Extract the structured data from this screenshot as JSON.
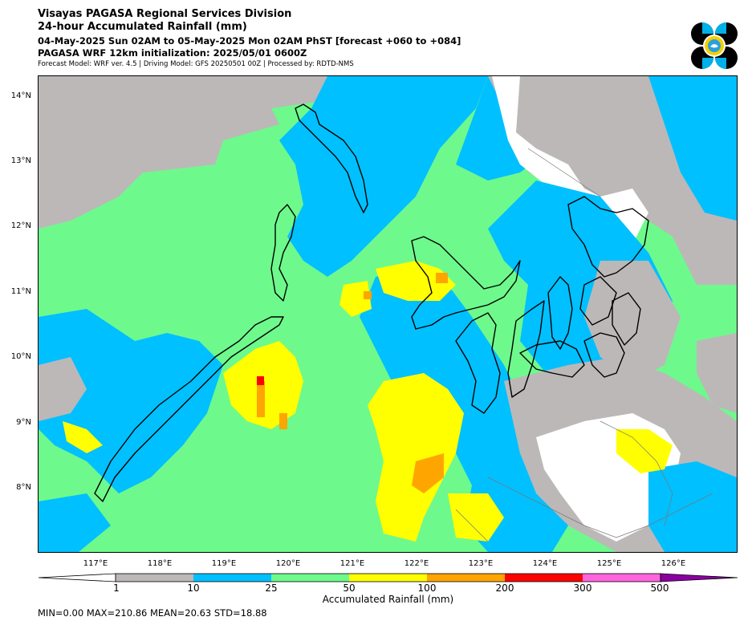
{
  "header": {
    "title": "Visayas PAGASA Regional Services Division",
    "subtitle": "24-hour Accumulated Rainfall (mm)",
    "period": "04-May-2025 Sun 02AM to 05-May-2025 Mon 02AM PhST [forecast +060 to +084]",
    "init": "PAGASA WRF 12km initialization: 2025/05/01 0600Z",
    "model_info": "Forecast Model: WRF ver. 4.5 | Driving Model: GFS 20250501 00Z | Processed by: RDTD-NMS"
  },
  "logo": {
    "icon": "pagasa-logo-icon"
  },
  "map": {
    "lat_range": [
      7.05,
      14.3
    ],
    "lon_range": [
      116.35,
      127.2
    ],
    "lat_labels": [
      "14°N",
      "13°N",
      "12°N",
      "11°N",
      "10°N",
      "9°N",
      "8°N"
    ],
    "lon_labels": [
      "117°E",
      "118°E",
      "119°E",
      "120°E",
      "121°E",
      "122°E",
      "123°E",
      "124°E",
      "125°E",
      "126°E"
    ]
  },
  "colorbar": {
    "title": "Accumulated Rainfall (mm)",
    "ticks": [
      "1",
      "10",
      "25",
      "50",
      "100",
      "200",
      "300",
      "500"
    ],
    "colors": {
      "under": "#ffffff",
      "1-10": "#bcb8b8",
      "10-25": "#00c0ff",
      "25-50": "#6ef98c",
      "50-100": "#ffff00",
      "100-200": "#ffa500",
      "200-300": "#ff0000",
      "300-500": "#ff66dd",
      "over": "#8b00a0"
    }
  },
  "stats": {
    "text": "MIN=0.00   MAX=210.86   MEAN=20.63   STD=18.88"
  }
}
